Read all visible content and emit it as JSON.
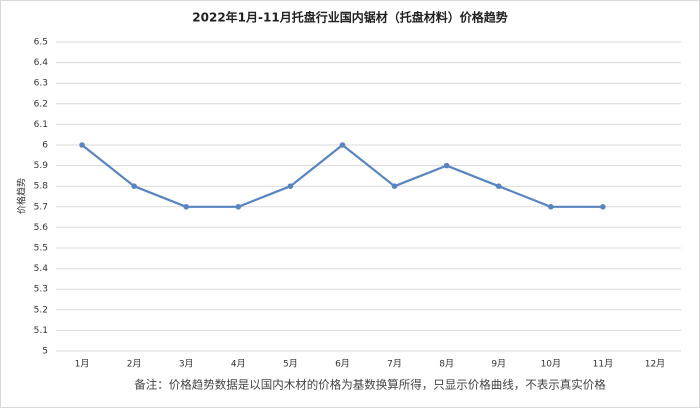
{
  "chart_data": {
    "type": "line",
    "title": "2022年1月-11月托盘行业国内锯材（托盘材料）价格趋势",
    "y_label": "价格趋势",
    "annotation": "备注：价格趋势数据是以国内木材的价格为基数换算所得，只显示价格曲线，不表示真实价格",
    "categories": [
      "1月",
      "2月",
      "3月",
      "4月",
      "5月",
      "6月",
      "7月",
      "8月",
      "9月",
      "10月",
      "11月",
      "12月"
    ],
    "values": [
      6,
      5.8,
      5.7,
      5.7,
      5.8,
      6,
      5.8,
      5.9,
      5.8,
      5.7,
      5.7,
      null
    ],
    "color": "#5885c0",
    "ylim": [
      5,
      6.5
    ],
    "yticks": [
      5,
      5.1,
      5.2,
      5.3,
      5.4,
      5.5,
      5.6,
      5.7,
      5.8,
      5.9,
      6,
      6.1,
      6.2,
      6.3,
      6.4,
      6.5
    ],
    "grid": true
  }
}
